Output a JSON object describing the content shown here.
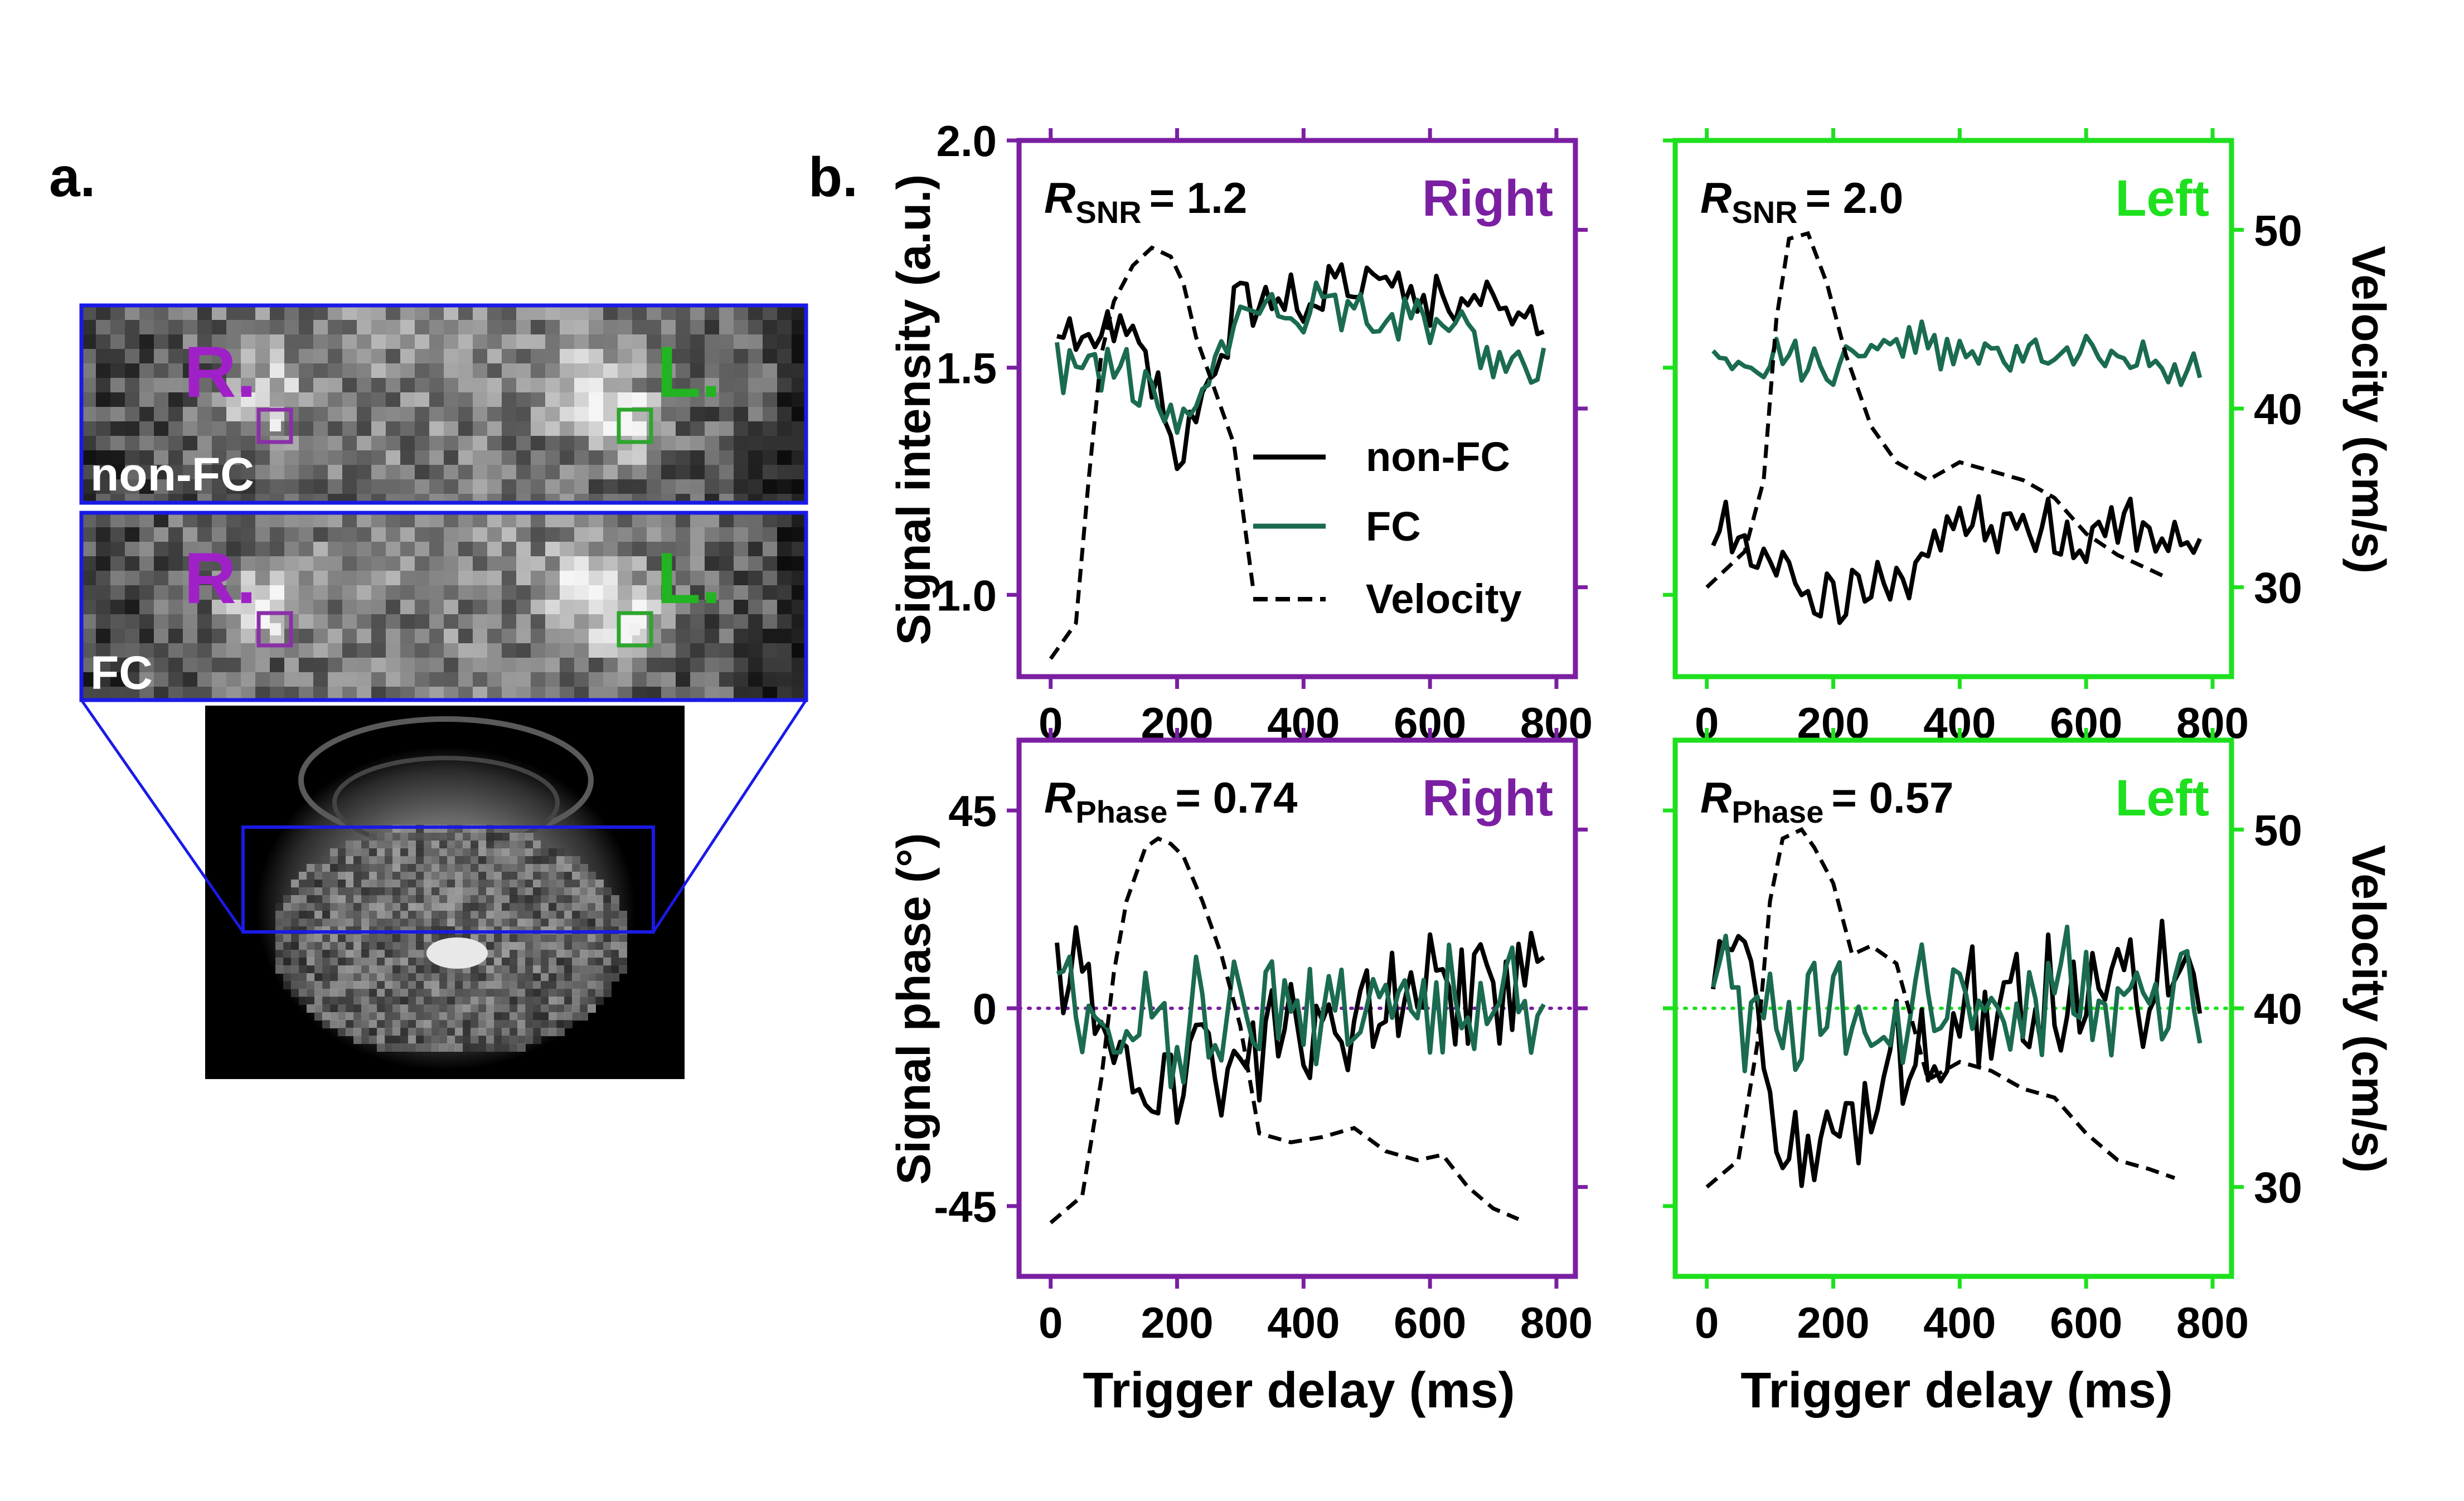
{
  "panel_labels": {
    "a": "a.",
    "b": "b."
  },
  "mri": {
    "strip_top_label": "non-FC",
    "strip_bottom_label": "FC",
    "right_marker": "R.",
    "left_marker": "L.",
    "colors": {
      "frame": "#1a1ae6",
      "right": "#a020c8",
      "left": "#22b422"
    }
  },
  "colors": {
    "purple": "#7b1fa2",
    "green": "#1ee01e",
    "nonfc": "#000000",
    "fc": "#1a6b4f",
    "velocity": "#000000"
  },
  "legend": {
    "nonfc": "non-FC",
    "fc": "FC",
    "velocity": "Velocity"
  },
  "chart_data": [
    {
      "id": "snr-right",
      "type": "line",
      "side_label": "Right",
      "r_label": {
        "letter": "R",
        "sub": "SNR",
        "value": "= 1.2"
      },
      "ylabel": "Signal intensity (a.u.)",
      "yticks": [
        "1.0",
        "1.5",
        "2.0"
      ],
      "xlim": [
        -50,
        830
      ],
      "ylim": [
        0.82,
        2.0
      ],
      "vel_lim": [
        25,
        55
      ],
      "fc_baseline": 1.5,
      "nonfc_baseline": 1.55,
      "velocity": {
        "t": [
          0,
          40,
          60,
          80,
          100,
          130,
          160,
          190,
          210,
          230,
          260,
          290,
          320
        ],
        "v": [
          26,
          28,
          36,
          43,
          46,
          48,
          49,
          48.5,
          47,
          44,
          41,
          38,
          30
        ]
      },
      "nonfc": {
        "t0": 10,
        "dt": 10,
        "ctrl_t": [
          10,
          100,
          150,
          200,
          250,
          300,
          400,
          500,
          600,
          700,
          780
        ],
        "ctrl_v": [
          1.57,
          1.58,
          1.55,
          1.3,
          1.45,
          1.65,
          1.66,
          1.72,
          1.66,
          1.64,
          1.57
        ],
        "noise": 0.05
      },
      "fc": {
        "t0": 10,
        "dt": 10,
        "ctrl_t": [
          10,
          100,
          150,
          200,
          250,
          300,
          400,
          500,
          600,
          700,
          780
        ],
        "ctrl_v": [
          1.49,
          1.5,
          1.45,
          1.38,
          1.46,
          1.62,
          1.62,
          1.63,
          1.6,
          1.52,
          1.5
        ],
        "noise": 0.05
      }
    },
    {
      "id": "snr-left",
      "type": "line",
      "side_label": "Left",
      "r_label": {
        "letter": "R",
        "sub": "SNR",
        "value": "= 2.0"
      },
      "ylabel2": "Velocity (cm/s)",
      "vticks": [
        "30",
        "40",
        "50"
      ],
      "xlim": [
        -50,
        830
      ],
      "ylim": [
        0.82,
        2.0
      ],
      "vel_lim": [
        25,
        55
      ],
      "velocity": {
        "t": [
          0,
          60,
          90,
          110,
          130,
          160,
          190,
          220,
          260,
          300,
          350,
          400,
          450,
          500,
          550,
          600,
          650,
          700,
          730
        ],
        "v": [
          30,
          32,
          36,
          45,
          49.5,
          49.8,
          47,
          43,
          39,
          37,
          36,
          37,
          36.5,
          36,
          35,
          33,
          31.8,
          31,
          30.5
        ]
      },
      "nonfc": {
        "t0": 10,
        "dt": 10,
        "ctrl_t": [
          10,
          60,
          100,
          150,
          200,
          250,
          300,
          350,
          400,
          500,
          600,
          700,
          780
        ],
        "ctrl_v": [
          1.15,
          1.12,
          1.1,
          1.0,
          0.97,
          1.0,
          1.03,
          1.1,
          1.14,
          1.13,
          1.13,
          1.14,
          1.15
        ],
        "noise": 0.06
      },
      "fc": {
        "t0": 10,
        "dt": 10,
        "ctrl_t": [
          10,
          100,
          200,
          300,
          400,
          500,
          600,
          700,
          780
        ],
        "ctrl_v": [
          1.5,
          1.51,
          1.5,
          1.55,
          1.54,
          1.53,
          1.52,
          1.5,
          1.49
        ],
        "noise": 0.04
      }
    },
    {
      "id": "phase-right",
      "type": "line",
      "side_label": "Right",
      "r_label": {
        "letter": "R",
        "sub": "Phase",
        "value": "= 0.74"
      },
      "ylabel": "Signal phase (°)",
      "yticks": [
        "-45",
        "0",
        "45"
      ],
      "xlim": [
        -50,
        830
      ],
      "ylim": [
        -61,
        61
      ],
      "vel_lim": [
        25,
        55
      ],
      "dotted_zero": true,
      "velocity": {
        "t": [
          0,
          50,
          80,
          100,
          120,
          150,
          170,
          190,
          210,
          240,
          270,
          300,
          330,
          380,
          430,
          480,
          530,
          580,
          620,
          660,
          700,
          740
        ],
        "v": [
          28,
          29.5,
          36,
          42,
          46,
          49,
          49.5,
          49.2,
          48.5,
          46,
          43,
          39,
          33,
          32.5,
          32.8,
          33.3,
          32,
          31.5,
          31.8,
          30,
          28.8,
          28.2
        ]
      },
      "nonfc": {
        "t0": 10,
        "dt": 10,
        "ctrl_t": [
          10,
          60,
          100,
          150,
          200,
          250,
          300,
          400,
          500,
          600,
          700,
          780
        ],
        "ctrl_v": [
          8,
          12,
          -12,
          -20,
          -15,
          -12,
          -8,
          -3,
          0,
          3,
          5,
          6
        ],
        "noise": 11
      },
      "fc": {
        "t0": 10,
        "dt": 10,
        "ctrl_t": [
          10,
          100,
          200,
          300,
          400,
          500,
          600,
          700,
          780
        ],
        "ctrl_v": [
          2,
          0,
          -3,
          -2,
          0,
          1,
          3,
          2,
          2
        ],
        "noise": 11
      }
    },
    {
      "id": "phase-left",
      "type": "line",
      "side_label": "Left",
      "r_label": {
        "letter": "R",
        "sub": "Phase",
        "value": "= 0.57"
      },
      "ylabel2": "Velocity (cm/s)",
      "vticks": [
        "30",
        "40",
        "50"
      ],
      "xlim": [
        -50,
        830
      ],
      "ylim": [
        -61,
        61
      ],
      "vel_lim": [
        25,
        55
      ],
      "dotted_zero": true,
      "velocity": {
        "t": [
          0,
          50,
          80,
          100,
          120,
          150,
          170,
          200,
          230,
          260,
          300,
          350,
          400,
          450,
          500,
          550,
          600,
          650,
          700,
          740
        ],
        "v": [
          30,
          31.5,
          38,
          46,
          49.5,
          50,
          49,
          47,
          43,
          43.5,
          42.5,
          36,
          37,
          36.5,
          35.5,
          35,
          33,
          31.5,
          31,
          30.5
        ]
      },
      "nonfc": {
        "t0": 10,
        "dt": 10,
        "ctrl_t": [
          10,
          60,
          100,
          130,
          160,
          200,
          250,
          300,
          400,
          500,
          600,
          700,
          780
        ],
        "ctrl_v": [
          5,
          12,
          -12,
          -30,
          -38,
          -28,
          -20,
          -8,
          -5,
          0,
          3,
          6,
          10
        ],
        "noise": 13
      },
      "fc": {
        "t0": 10,
        "dt": 10,
        "ctrl_t": [
          10,
          100,
          200,
          300,
          400,
          500,
          600,
          700,
          780
        ],
        "ctrl_v": [
          3,
          0,
          -3,
          -2,
          2,
          1,
          4,
          3,
          2
        ],
        "noise": 12
      }
    }
  ],
  "xaxis": {
    "ticks": [
      "0",
      "200",
      "400",
      "600",
      "800"
    ],
    "tick_values": [
      0,
      200,
      400,
      600,
      800
    ],
    "label": "Trigger delay (ms)"
  }
}
